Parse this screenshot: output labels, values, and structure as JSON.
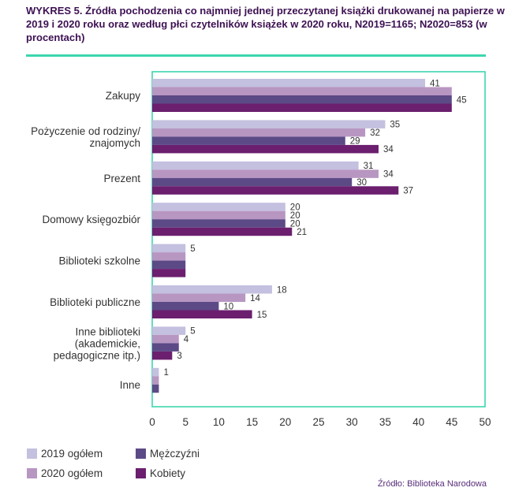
{
  "title": "WYKRES 5. Źródła pochodzenia co najmniej jednej przeczytanej książki drukowanej na papierze w 2019 i 2020 roku oraz według płci czytelników książek w 2020 roku, N2019=1165; N2020=853 (w procentach)",
  "source": "Źródło: Biblioteka Narodowa",
  "colors": {
    "series_2019": "#c4c0df",
    "series_2020": "#b896c2",
    "series_men": "#5c4a87",
    "series_women": "#6b1f6e",
    "rule": "#3cd6ae",
    "axis": "#3cd6ae"
  },
  "chart_data": {
    "type": "bar",
    "orientation": "horizontal",
    "categories": [
      [
        "Zakupy"
      ],
      [
        "Pożyczenie od rodziny/",
        "znajomych"
      ],
      [
        "Prezent"
      ],
      [
        "Domowy księgozbiór"
      ],
      [
        "Biblioteki szkolne"
      ],
      [
        "Biblioteki publiczne"
      ],
      [
        "Inne biblioteki",
        "(akademickie,",
        "pedagogiczne itp.)"
      ],
      [
        "Inne"
      ]
    ],
    "series": [
      {
        "name": "2019 ogółem",
        "values": [
          41,
          35,
          31,
          20,
          5,
          18,
          5,
          1
        ],
        "labels": [
          "41",
          "35",
          "31",
          "20",
          "5",
          "18",
          "5",
          "1"
        ]
      },
      {
        "name": "2020 ogółem",
        "values": [
          45,
          32,
          34,
          20,
          5,
          14,
          4,
          1
        ],
        "labels": [
          "",
          "32",
          "34",
          "20",
          "",
          "14",
          "4",
          ""
        ]
      },
      {
        "name": "Mężczyźni",
        "values": [
          45,
          29,
          30,
          20,
          5,
          10,
          4,
          1
        ],
        "labels": [
          "45",
          "29",
          "30",
          "20",
          "",
          "10",
          "",
          ""
        ]
      },
      {
        "name": "Kobiety",
        "values": [
          45,
          34,
          37,
          21,
          5,
          15,
          3,
          0
        ],
        "labels": [
          "",
          "34",
          "37",
          "21",
          "",
          "15",
          "3",
          ""
        ]
      }
    ],
    "xlim": [
      0,
      50
    ],
    "xticks": [
      "0",
      "5",
      "10",
      "15",
      "20",
      "25",
      "30",
      "35",
      "40",
      "45",
      "50"
    ],
    "legend_position": "bottom-left",
    "grid": false
  }
}
